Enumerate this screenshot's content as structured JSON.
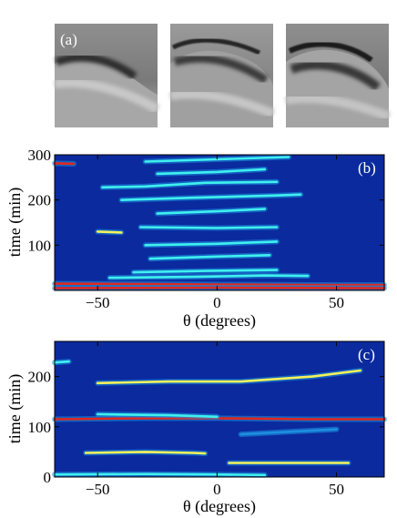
{
  "panels": {
    "a": {
      "label": "(a)"
    },
    "b": {
      "label": "(b)"
    },
    "c": {
      "label": "(c)"
    }
  },
  "colors": {
    "background": "#0a2a9e",
    "track_low": "#1e8fe0",
    "track_mid": "#3ff0ee",
    "track_high": "#f4f25a",
    "track_peak": "#e0281e"
  },
  "chart_data": [
    {
      "type": "heatmap",
      "panel": "(b)",
      "xlabel": "θ (degrees)",
      "ylabel": "time (min)",
      "xlim": [
        -68,
        70
      ],
      "ylim": [
        0,
        300
      ],
      "xticks": [
        -50,
        0,
        50
      ],
      "xtick_labels": [
        "−50",
        "0",
        "50"
      ],
      "yticks": [
        100,
        200,
        300
      ],
      "ytick_labels": [
        "100",
        "200",
        "300"
      ],
      "tracks": [
        {
          "points": [
            [
              -68,
              15
            ],
            [
              -30,
              14
            ],
            [
              0,
              13
            ],
            [
              40,
              12
            ],
            [
              70,
              12
            ]
          ],
          "intensity": 1.0
        },
        {
          "points": [
            [
              -68,
              5
            ],
            [
              0,
              6
            ],
            [
              70,
              5
            ]
          ],
          "intensity": 0.9
        },
        {
          "points": [
            [
              -45,
              28
            ],
            [
              -10,
              30
            ],
            [
              20,
              33
            ],
            [
              38,
              32
            ]
          ],
          "intensity": 0.6
        },
        {
          "points": [
            [
              -35,
              40
            ],
            [
              -5,
              43
            ],
            [
              25,
              45
            ]
          ],
          "intensity": 0.5
        },
        {
          "points": [
            [
              -28,
              70
            ],
            [
              0,
              75
            ],
            [
              22,
              78
            ]
          ],
          "intensity": 0.5
        },
        {
          "points": [
            [
              -30,
              100
            ],
            [
              0,
              103
            ],
            [
              25,
              108
            ]
          ],
          "intensity": 0.45
        },
        {
          "points": [
            [
              -50,
              130
            ],
            [
              -40,
              128
            ]
          ],
          "intensity": 0.8
        },
        {
          "points": [
            [
              -32,
              140
            ],
            [
              0,
              138
            ],
            [
              25,
              140
            ]
          ],
          "intensity": 0.45
        },
        {
          "points": [
            [
              -25,
              170
            ],
            [
              0,
              175
            ],
            [
              20,
              180
            ]
          ],
          "intensity": 0.5
        },
        {
          "points": [
            [
              -40,
              200
            ],
            [
              -10,
              205
            ],
            [
              25,
              210
            ],
            [
              35,
              212
            ]
          ],
          "intensity": 0.5
        },
        {
          "points": [
            [
              -48,
              228
            ],
            [
              -30,
              230
            ],
            [
              -5,
              238
            ],
            [
              25,
              240
            ]
          ],
          "intensity": 0.6
        },
        {
          "points": [
            [
              -25,
              258
            ],
            [
              0,
              262
            ],
            [
              20,
              268
            ]
          ],
          "intensity": 0.5
        },
        {
          "points": [
            [
              -68,
              281
            ],
            [
              -60,
              280
            ]
          ],
          "intensity": 0.85
        },
        {
          "points": [
            [
              -30,
              285
            ],
            [
              0,
              290
            ],
            [
              30,
              295
            ]
          ],
          "intensity": 0.5
        }
      ]
    },
    {
      "type": "heatmap",
      "panel": "(c)",
      "xlabel": "θ (degrees)",
      "ylabel": "time (min)",
      "xlim": [
        -68,
        70
      ],
      "ylim": [
        0,
        270
      ],
      "xticks": [
        -50,
        0,
        50
      ],
      "xtick_labels": [
        "−50",
        "0",
        "50"
      ],
      "yticks": [
        0,
        100,
        200
      ],
      "ytick_labels": [
        "0",
        "100",
        "200"
      ],
      "tracks": [
        {
          "points": [
            [
              -68,
              228
            ],
            [
              -62,
              230
            ]
          ],
          "intensity": 0.5
        },
        {
          "points": [
            [
              -50,
              187
            ],
            [
              -20,
              190
            ],
            [
              10,
              190
            ],
            [
              40,
              200
            ],
            [
              60,
              212
            ]
          ],
          "intensity": 0.7
        },
        {
          "points": [
            [
              -68,
              115
            ],
            [
              -30,
              117
            ],
            [
              0,
              117
            ],
            [
              40,
              115
            ],
            [
              70,
              115
            ]
          ],
          "intensity": 0.85
        },
        {
          "points": [
            [
              -50,
              125
            ],
            [
              -20,
              123
            ],
            [
              0,
              120
            ]
          ],
          "intensity": 0.55
        },
        {
          "points": [
            [
              -55,
              48
            ],
            [
              -30,
              50
            ],
            [
              -10,
              48
            ],
            [
              -5,
              47
            ]
          ],
          "intensity": 0.7
        },
        {
          "points": [
            [
              10,
              85
            ],
            [
              30,
              90
            ],
            [
              50,
              95
            ]
          ],
          "intensity": 0.35
        },
        {
          "points": [
            [
              5,
              28
            ],
            [
              30,
              28
            ],
            [
              55,
              28
            ]
          ],
          "intensity": 0.75
        },
        {
          "points": [
            [
              -68,
              5
            ],
            [
              -30,
              6
            ],
            [
              0,
              5
            ],
            [
              20,
              4
            ]
          ],
          "intensity": 0.55
        }
      ]
    }
  ]
}
